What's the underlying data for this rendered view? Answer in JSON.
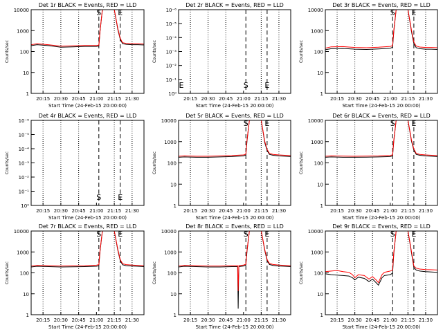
{
  "figure": {
    "background": "#ffffff",
    "axis_color": "#000000",
    "events_color": "#000000",
    "lld_color": "#ff0000"
  },
  "chart_data": [
    {
      "type": "line",
      "title": "Det 1r BLACK = Events, RED = LLD",
      "ylabel": "Counts/sec",
      "xlabel": "Start Time (24-Feb-15 20:00:00)",
      "x_ticks": [
        "20:15",
        "20:30",
        "20:45",
        "21:00",
        "21:15",
        "21:30"
      ],
      "y_ticks": [
        "1",
        "10",
        "100",
        "1000",
        "10000"
      ],
      "ylim": [
        1,
        15000
      ],
      "y_log": true,
      "x_range_min": [
        5,
        100
      ],
      "vlines_dotted_min": [
        15,
        30,
        45,
        75,
        90
      ],
      "vlines_dashed_min": [
        62,
        80
      ],
      "markers": [
        {
          "x": 62,
          "label": "S"
        },
        {
          "x": 80,
          "label": "E"
        }
      ],
      "series": [
        {
          "name": "Events",
          "color": "#000000",
          "x": [
            5,
            10,
            20,
            30,
            40,
            50,
            60,
            62,
            63,
            65,
            75,
            78,
            80,
            82,
            85,
            90,
            95,
            100
          ],
          "y": [
            240,
            270,
            240,
            200,
            210,
            220,
            220,
            230,
            1200,
            15000,
            15000,
            1500,
            500,
            300,
            280,
            270,
            270,
            260
          ]
        },
        {
          "name": "LLD",
          "color": "#ff0000",
          "x": [
            5,
            10,
            20,
            30,
            40,
            50,
            60,
            62,
            63,
            65,
            75,
            78,
            80,
            82,
            85,
            90,
            95,
            100
          ],
          "y": [
            270,
            300,
            265,
            225,
            235,
            245,
            245,
            255,
            1300,
            15000,
            15000,
            1700,
            560,
            340,
            310,
            300,
            300,
            290
          ]
        }
      ]
    },
    {
      "type": "line",
      "title": "Det 2r BLACK = Events, RED = LLD",
      "ylabel": "Counts/sec",
      "xlabel": "Start Time (24-Feb-15 20:00:00)",
      "x_ticks": [
        "20:15",
        "20:30",
        "20:45",
        "21:00",
        "21:15",
        "21:30"
      ],
      "y_ticks": [
        "10⁰",
        "10⁻¹",
        "10⁻²",
        "10⁻³",
        "10⁻⁴",
        "10⁻⁵",
        "10⁻⁶"
      ],
      "ylim": [
        1e-06,
        1
      ],
      "y_log": true,
      "y_inverted": true,
      "x_range_min": [
        5,
        100
      ],
      "vlines_dotted_min": [
        15,
        30,
        45,
        75,
        90
      ],
      "vlines_dashed_min": [
        62,
        80
      ],
      "markers": [
        {
          "x": 62,
          "label": "S"
        },
        {
          "x": 80,
          "label": "E"
        },
        {
          "x": 5,
          "label": "E"
        }
      ],
      "series": []
    },
    {
      "type": "line",
      "title": "Det 3r BLACK = Events, RED = LLD",
      "ylabel": "Counts/sec",
      "xlabel": "Start Time (24-Feb-15 20:00:00)",
      "x_ticks": [
        "20:15",
        "20:30",
        "20:45",
        "21:00",
        "21:15",
        "21:30"
      ],
      "y_ticks": [
        "1",
        "10",
        "100",
        "1000",
        "10000"
      ],
      "ylim": [
        1,
        15000
      ],
      "y_log": true,
      "x_range_min": [
        5,
        100
      ],
      "vlines_dotted_min": [
        15,
        30,
        45,
        75,
        90
      ],
      "vlines_dashed_min": [
        62,
        80
      ],
      "markers": [
        {
          "x": 62,
          "label": "S"
        },
        {
          "x": 80,
          "label": "E"
        }
      ],
      "series": [
        {
          "name": "Events",
          "color": "#000000",
          "x": [
            5,
            10,
            20,
            30,
            40,
            50,
            60,
            62,
            63,
            65,
            75,
            78,
            80,
            82,
            85,
            90,
            95,
            100
          ],
          "y": [
            150,
            170,
            175,
            160,
            155,
            165,
            180,
            200,
            1200,
            15000,
            15000,
            1200,
            300,
            190,
            170,
            160,
            160,
            155
          ]
        },
        {
          "name": "LLD",
          "color": "#ff0000",
          "x": [
            5,
            10,
            20,
            30,
            40,
            50,
            60,
            62,
            63,
            65,
            75,
            78,
            80,
            82,
            85,
            90,
            95,
            100
          ],
          "y": [
            180,
            210,
            215,
            195,
            190,
            200,
            220,
            240,
            1400,
            15000,
            15000,
            1400,
            360,
            230,
            205,
            195,
            195,
            190
          ]
        }
      ]
    },
    {
      "type": "line",
      "title": "Det 4r BLACK = Events, RED = LLD",
      "ylabel": "Counts/sec",
      "xlabel": "Start Time (24-Feb-15 20:00:00)",
      "x_ticks": [
        "20:15",
        "20:30",
        "20:45",
        "21:00",
        "21:15",
        "21:30"
      ],
      "y_ticks": [
        "10⁰",
        "10⁻¹",
        "10⁻²",
        "10⁻³",
        "10⁻⁴",
        "10⁻⁵",
        "10⁻⁶"
      ],
      "ylim": [
        1e-06,
        1
      ],
      "y_log": true,
      "y_inverted": true,
      "x_range_min": [
        5,
        100
      ],
      "vlines_dotted_min": [
        15,
        30,
        45,
        75,
        90
      ],
      "vlines_dashed_min": [
        62,
        80
      ],
      "markers": [
        {
          "x": 62,
          "label": "S"
        },
        {
          "x": 80,
          "label": "E"
        }
      ],
      "series": []
    },
    {
      "type": "line",
      "title": "Det 5r BLACK = Events, RED = LLD",
      "ylabel": "Counts/sec",
      "xlabel": "Start Time (24-Feb-15 20:00:00)",
      "x_ticks": [
        "20:15",
        "20:30",
        "20:45",
        "21:00",
        "21:15",
        "21:30"
      ],
      "y_ticks": [
        "1",
        "10",
        "100",
        "1000",
        "10000"
      ],
      "ylim": [
        1,
        15000
      ],
      "y_log": true,
      "x_range_min": [
        5,
        100
      ],
      "vlines_dotted_min": [
        15,
        30,
        45,
        75,
        90
      ],
      "vlines_dashed_min": [
        62,
        80
      ],
      "markers": [
        {
          "x": 62,
          "label": "S"
        },
        {
          "x": 80,
          "label": "E"
        }
      ],
      "series": [
        {
          "name": "Events",
          "color": "#000000",
          "x": [
            5,
            10,
            20,
            30,
            40,
            50,
            60,
            62,
            63,
            65,
            75,
            78,
            80,
            82,
            85,
            90,
            95,
            100
          ],
          "y": [
            230,
            240,
            230,
            230,
            240,
            250,
            270,
            300,
            1500,
            15000,
            15000,
            1200,
            500,
            320,
            290,
            270,
            260,
            250
          ]
        },
        {
          "name": "LLD",
          "color": "#ff0000",
          "x": [
            5,
            10,
            20,
            30,
            40,
            50,
            60,
            62,
            63,
            65,
            75,
            78,
            80,
            82,
            85,
            90,
            95,
            100
          ],
          "y": [
            260,
            270,
            260,
            260,
            270,
            280,
            300,
            330,
            1700,
            15000,
            15000,
            1400,
            560,
            360,
            320,
            300,
            290,
            280
          ]
        }
      ]
    },
    {
      "type": "line",
      "title": "Det 6r BLACK = Events, RED = LLD",
      "ylabel": "Counts/sec",
      "xlabel": "Start Time (24-Feb-15 20:00:00)",
      "x_ticks": [
        "20:15",
        "20:30",
        "20:45",
        "21:00",
        "21:15",
        "21:30"
      ],
      "y_ticks": [
        "1",
        "10",
        "100",
        "1000",
        "10000"
      ],
      "ylim": [
        1,
        15000
      ],
      "y_log": true,
      "x_range_min": [
        5,
        100
      ],
      "vlines_dotted_min": [
        15,
        30,
        45,
        75,
        90
      ],
      "vlines_dashed_min": [
        62,
        80
      ],
      "markers": [
        {
          "x": 62,
          "label": "S"
        },
        {
          "x": 80,
          "label": "E"
        }
      ],
      "series": [
        {
          "name": "Events",
          "color": "#000000",
          "x": [
            5,
            10,
            20,
            30,
            40,
            50,
            60,
            62,
            63,
            65,
            75,
            78,
            80,
            82,
            85,
            90,
            95,
            100
          ],
          "y": [
            230,
            240,
            230,
            230,
            235,
            240,
            250,
            270,
            1400,
            15000,
            15000,
            1400,
            520,
            320,
            290,
            270,
            260,
            250
          ]
        },
        {
          "name": "LLD",
          "color": "#ff0000",
          "x": [
            5,
            10,
            20,
            30,
            40,
            50,
            60,
            62,
            63,
            65,
            75,
            78,
            80,
            82,
            85,
            90,
            95,
            100
          ],
          "y": [
            260,
            270,
            265,
            260,
            265,
            270,
            285,
            305,
            1600,
            15000,
            15000,
            1600,
            590,
            360,
            320,
            300,
            290,
            280
          ]
        }
      ]
    },
    {
      "type": "line",
      "title": "Det 7r BLACK = Events, RED = LLD",
      "ylabel": "Counts/sec",
      "xlabel": "Start Time (24-Feb-15 20:00:00)",
      "x_ticks": [
        "20:15",
        "20:30",
        "20:45",
        "21:00",
        "21:15",
        "21:30"
      ],
      "y_ticks": [
        "1",
        "10",
        "100",
        "1000",
        "10000"
      ],
      "ylim": [
        1,
        15000
      ],
      "y_log": true,
      "x_range_min": [
        5,
        100
      ],
      "vlines_dotted_min": [
        15,
        30,
        45,
        75,
        90
      ],
      "vlines_dashed_min": [
        62,
        80
      ],
      "markers": [
        {
          "x": 62,
          "label": "S"
        },
        {
          "x": 80,
          "label": "E"
        }
      ],
      "series": [
        {
          "name": "Events",
          "color": "#000000",
          "x": [
            5,
            10,
            20,
            30,
            40,
            50,
            60,
            62,
            63,
            65,
            75,
            78,
            80,
            82,
            85,
            90,
            95,
            100
          ],
          "y": [
            240,
            260,
            250,
            240,
            245,
            250,
            260,
            280,
            1400,
            15000,
            15000,
            1600,
            500,
            310,
            280,
            270,
            260,
            250
          ]
        },
        {
          "name": "LLD",
          "color": "#ff0000",
          "x": [
            5,
            10,
            20,
            30,
            40,
            50,
            60,
            62,
            63,
            65,
            75,
            78,
            80,
            82,
            85,
            90,
            95,
            100
          ],
          "y": [
            270,
            290,
            280,
            270,
            275,
            280,
            295,
            315,
            1600,
            15000,
            15000,
            1800,
            560,
            350,
            315,
            300,
            290,
            280
          ]
        }
      ]
    },
    {
      "type": "line",
      "title": "Det 8r BLACK = Events, RED = LLD",
      "ylabel": "Counts/sec",
      "xlabel": "Start Time (24-Feb-15 20:00:00)",
      "x_ticks": [
        "20:15",
        "20:30",
        "20:45",
        "21:00",
        "21:15",
        "21:30"
      ],
      "y_ticks": [
        "1",
        "10",
        "100",
        "1000",
        "10000"
      ],
      "ylim": [
        1,
        15000
      ],
      "y_log": true,
      "x_range_min": [
        5,
        100
      ],
      "vlines_dotted_min": [
        15,
        30,
        45,
        75,
        90
      ],
      "vlines_dashed_min": [
        62,
        80
      ],
      "markers": [
        {
          "x": 62,
          "label": "S"
        },
        {
          "x": 80,
          "label": "E"
        }
      ],
      "series": [
        {
          "name": "Events",
          "color": "#000000",
          "x": [
            5,
            10,
            20,
            30,
            40,
            50,
            55,
            55.5,
            56,
            60,
            62,
            63,
            65,
            75,
            78,
            80,
            82,
            85,
            90,
            95,
            100
          ],
          "y": [
            240,
            260,
            250,
            240,
            240,
            250,
            250,
            2,
            250,
            270,
            300,
            1500,
            15000,
            15000,
            1600,
            500,
            320,
            290,
            270,
            260,
            250
          ]
        },
        {
          "name": "LLD",
          "color": "#ff0000",
          "x": [
            5,
            10,
            20,
            30,
            40,
            50,
            55,
            55.5,
            56,
            60,
            62,
            63,
            65,
            75,
            78,
            80,
            82,
            85,
            90,
            95,
            100
          ],
          "y": [
            270,
            290,
            280,
            270,
            270,
            280,
            280,
            15,
            280,
            300,
            330,
            1700,
            15000,
            15000,
            1800,
            560,
            360,
            320,
            300,
            290,
            280
          ]
        }
      ]
    },
    {
      "type": "line",
      "title": "Det 9r BLACK = Events, RED = LLD",
      "ylabel": "Counts/sec",
      "xlabel": "Start Time (24-Feb-15 20:00:00)",
      "x_ticks": [
        "20:15",
        "20:30",
        "20:45",
        "21:00",
        "21:15",
        "21:30"
      ],
      "y_ticks": [
        "1",
        "10",
        "100",
        "1000",
        "10000"
      ],
      "ylim": [
        1,
        15000
      ],
      "y_log": true,
      "x_range_min": [
        5,
        100
      ],
      "vlines_dotted_min": [
        15,
        30,
        45,
        75,
        90
      ],
      "vlines_dashed_min": [
        62,
        80
      ],
      "markers": [
        {
          "x": 62,
          "label": "S"
        },
        {
          "x": 80,
          "label": "E"
        }
      ],
      "series": [
        {
          "name": "Events",
          "color": "#000000",
          "x": [
            5,
            10,
            15,
            20,
            25,
            28,
            30,
            33,
            38,
            42,
            45,
            48,
            50,
            53,
            55,
            60,
            62,
            63,
            65,
            75,
            78,
            80,
            82,
            85,
            90,
            95,
            100
          ],
          "y": [
            110,
            100,
            95,
            90,
            85,
            70,
            55,
            75,
            65,
            45,
            60,
            40,
            30,
            70,
            90,
            100,
            120,
            1100,
            15000,
            15000,
            1200,
            230,
            170,
            150,
            140,
            135,
            130
          ]
        },
        {
          "name": "LLD",
          "color": "#ff0000",
          "x": [
            5,
            10,
            15,
            20,
            25,
            28,
            30,
            33,
            38,
            42,
            45,
            48,
            50,
            53,
            55,
            60,
            62,
            63,
            65,
            75,
            78,
            80,
            82,
            85,
            90,
            95,
            100
          ],
          "y": [
            140,
            150,
            160,
            140,
            130,
            100,
            70,
            100,
            90,
            60,
            80,
            55,
            40,
            100,
            130,
            150,
            170,
            1300,
            15000,
            15000,
            1400,
            270,
            210,
            190,
            180,
            175,
            170
          ]
        }
      ]
    }
  ]
}
